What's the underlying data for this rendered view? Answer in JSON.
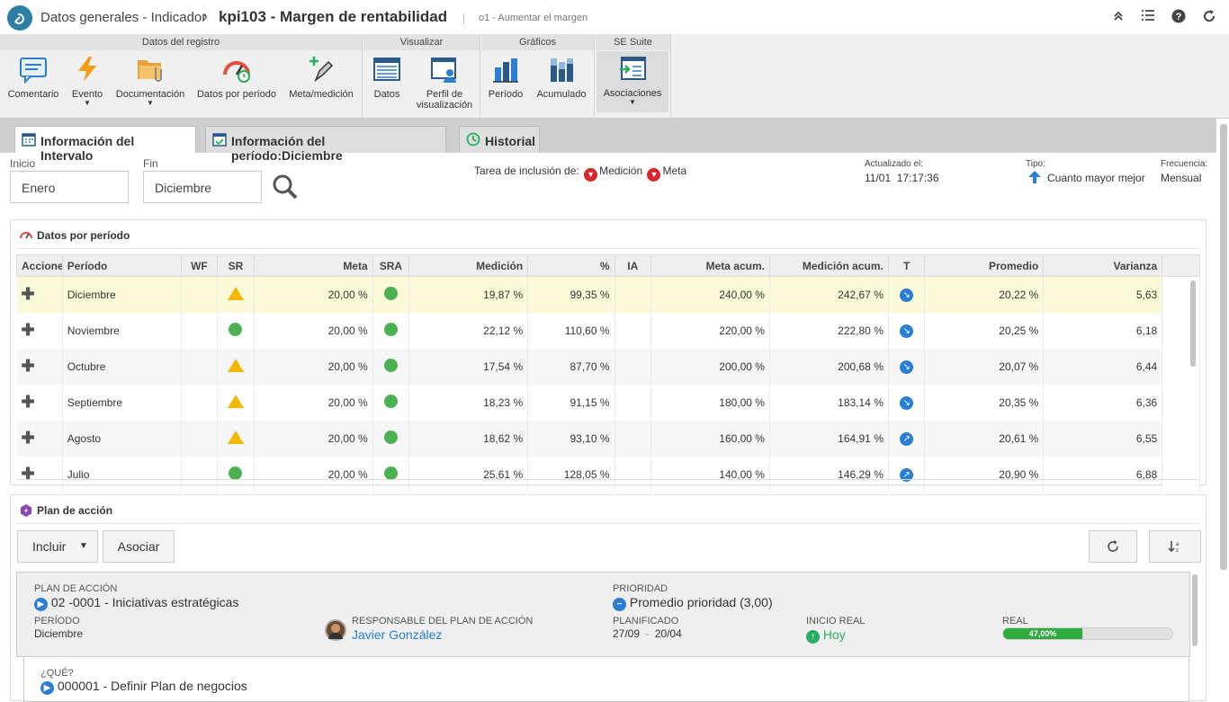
{
  "header": {
    "breadcrumb": "Datos generales - Indicador",
    "separator": "›",
    "title": "kpi103 - Margen de rentabilidad",
    "subtitle": "o1 - Aumentar el margen"
  },
  "ribbon": {
    "groups": [
      "Datos del registro",
      "Visualizar",
      "Gráficos",
      "SE Suite"
    ],
    "buttons": {
      "comentario": "Comentario",
      "evento": "Evento",
      "documentacion": "Documentación",
      "datos_periodo": "Datos por período",
      "meta_medicion": "Meta/medición",
      "datos": "Datos",
      "perfil": "Perfil de visualización",
      "periodo": "Período",
      "acumulado": "Acumulado",
      "asociaciones": "Asociaciones"
    }
  },
  "tabs": [
    {
      "label": "Información del Intervalo"
    },
    {
      "label": "Información del período:Diciembre"
    },
    {
      "label": "Historial"
    }
  ],
  "filters": {
    "inicio_label": "Inicio",
    "inicio_value": "Enero",
    "fin_label": "Fin",
    "fin_value": "Diciembre",
    "tarea_label": "Tarea de inclusión de:",
    "tarea_medicion": "Medición",
    "tarea_meta": "Meta",
    "actualizado_label": "Actualizado el:",
    "actualizado_value": "11/01  17:17:36",
    "tipo_label": "Tipo:",
    "tipo_value": "Cuanto mayor mejor",
    "frecuencia_label": "Frecuencia:",
    "frecuencia_value": "Mensual"
  },
  "datos_periodo": {
    "title": "Datos por período",
    "columns": [
      "Acciones",
      "Período",
      "WF",
      "SR",
      "Meta",
      "SRA",
      "Medición",
      "%",
      "IA",
      "Meta acum.",
      "Medición acum.",
      "T",
      "Promedio",
      "Varianza"
    ],
    "rows": [
      {
        "periodo": "Diciembre",
        "sr": "warning",
        "meta": "20,00 %",
        "sra": "ok",
        "medicion": "19,87 %",
        "pct": "99,35 %",
        "meta_acum": "240,00 %",
        "medicion_acum": "242,67 %",
        "trend": "down",
        "promedio": "20,22 %",
        "varianza": "5,63"
      },
      {
        "periodo": "Noviembre",
        "sr": "ok",
        "meta": "20,00 %",
        "sra": "ok",
        "medicion": "22,12 %",
        "pct": "110,60 %",
        "meta_acum": "220,00 %",
        "medicion_acum": "222,80 %",
        "trend": "down",
        "promedio": "20,25 %",
        "varianza": "6,18"
      },
      {
        "periodo": "Octubre",
        "sr": "warning",
        "meta": "20,00 %",
        "sra": "ok",
        "medicion": "17,54 %",
        "pct": "87,70 %",
        "meta_acum": "200,00 %",
        "medicion_acum": "200,68 %",
        "trend": "down",
        "promedio": "20,07 %",
        "varianza": "6,44"
      },
      {
        "periodo": "Septiembre",
        "sr": "warning",
        "meta": "20,00 %",
        "sra": "ok",
        "medicion": "18,23 %",
        "pct": "91,15 %",
        "meta_acum": "180,00 %",
        "medicion_acum": "183,14 %",
        "trend": "down",
        "promedio": "20,35 %",
        "varianza": "6,36"
      },
      {
        "periodo": "Agosto",
        "sr": "warning",
        "meta": "20,00 %",
        "sra": "ok",
        "medicion": "18,62 %",
        "pct": "93,10 %",
        "meta_acum": "160,00 %",
        "medicion_acum": "164,91 %",
        "trend": "up",
        "promedio": "20,61 %",
        "varianza": "6,55"
      },
      {
        "periodo": "Julio",
        "sr": "ok",
        "meta": "20,00 %",
        "sra": "ok",
        "medicion": "25,61 %",
        "pct": "128,05 %",
        "meta_acum": "140,00 %",
        "medicion_acum": "146,29 %",
        "trend": "up",
        "promedio": "20,90 %",
        "varianza": "6,88"
      }
    ]
  },
  "plan": {
    "title": "Plan de acción",
    "incluir": "Incluir",
    "asociar": "Asociar",
    "card": {
      "plan_label": "PLAN DE ACCIÓN",
      "plan_value": "02 -0001 - Iniciativas estratégicas",
      "prioridad_label": "PRIORIDAD",
      "prioridad_value": "Promedio prioridad (3,00)",
      "periodo_label": "PERÍODO",
      "periodo_value": "Diciembre",
      "responsable_label": "RESPONSABLE DEL PLAN DE ACCIÓN",
      "responsable_value": "Javier González",
      "planificado_label": "PLANIFICADO",
      "planificado_start": "27/09",
      "planificado_dash": "-",
      "planificado_end": "20/04",
      "inicio_label": "INICIO REAL",
      "inicio_value": "Hoy",
      "real_label": "REAL",
      "real_value": "47,00%",
      "real_progress": 0.47
    },
    "que_label": "¿QUÉ?",
    "que_value": "000001 - Definir Plan de negocios"
  },
  "colors": {
    "accent": "#2a7fd4",
    "warning": "#f5b800",
    "ok": "#4caf50",
    "danger": "#d9252c",
    "selected_row": "#fbfad8"
  }
}
